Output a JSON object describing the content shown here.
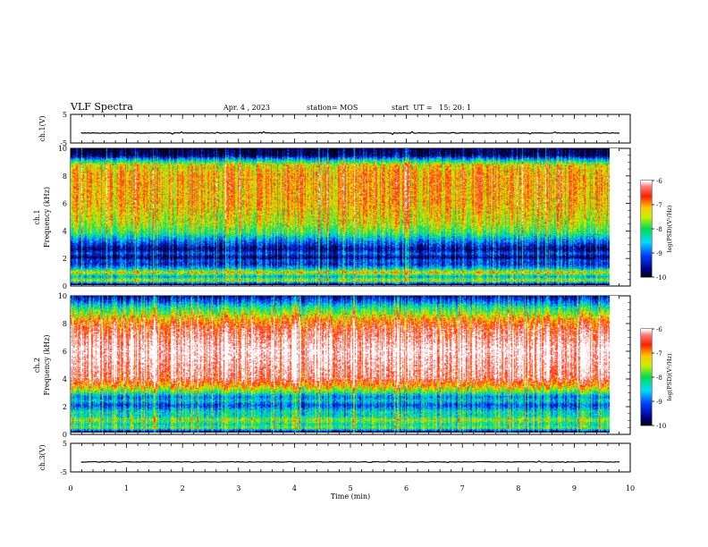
{
  "header": {
    "title": "VLF Spectra",
    "date": "Apr. 4 , 2023",
    "station": "station= MOS",
    "start": "start  UT =   15: 20: 1"
  },
  "chart_data": [
    {
      "type": "line",
      "panel": "ch1-waveform",
      "ylabel": "ch.1(V)",
      "ylim": [
        -5,
        5
      ],
      "yticks": [
        "5",
        "-5"
      ],
      "xlim": [
        0,
        10
      ],
      "series": [
        {
          "values_description_level": -1.5
        }
      ]
    },
    {
      "type": "heatmap",
      "panel": "ch1-spectrogram",
      "ylabel_line1": "ch.1",
      "ylabel_line2": "Frequency (kHz)",
      "ylim": [
        0,
        10
      ],
      "yticks": [
        "0",
        "2",
        "4",
        "6",
        "8",
        "10"
      ],
      "xlim": [
        0,
        10
      ],
      "data_end_min": 9.83,
      "colorbar": {
        "label": "log(PSD)(V²/Hz)",
        "range": [
          -10,
          -6
        ],
        "ticks": [
          "-6",
          "-7",
          "-8",
          "-9",
          "-10"
        ]
      },
      "profile": [
        [
          0,
          -10
        ],
        [
          0.3,
          -7.4
        ],
        [
          0.6,
          -8.6
        ],
        [
          0.9,
          -7.2
        ],
        [
          1.2,
          -8.6
        ],
        [
          1.5,
          -9.3
        ],
        [
          1.8,
          -9.1
        ],
        [
          2.0,
          -9.8
        ],
        [
          2.3,
          -9.1
        ],
        [
          2.6,
          -9.7
        ],
        [
          2.9,
          -9.3
        ],
        [
          3.3,
          -8.8
        ],
        [
          3.8,
          -8.0
        ],
        [
          4.5,
          -7.5
        ],
        [
          6.0,
          -7.1
        ],
        [
          8.0,
          -7.0
        ],
        [
          8.8,
          -7.3
        ],
        [
          9.2,
          -8.6
        ],
        [
          9.5,
          -9.8
        ],
        [
          10,
          -10
        ]
      ]
    },
    {
      "type": "heatmap",
      "panel": "ch2-spectrogram",
      "ylabel_line1": "ch.2",
      "ylabel_line2": "Frequency (kHz)",
      "ylim": [
        0,
        10
      ],
      "yticks": [
        "0",
        "2",
        "4",
        "6",
        "8",
        "10"
      ],
      "xlim": [
        0,
        10
      ],
      "data_end_min": 9.83,
      "colorbar": {
        "label": "log(PSD)(V²/Hz)",
        "range": [
          -10,
          -6
        ],
        "ticks": [
          "-6",
          "-7",
          "-8",
          "-9",
          "-10"
        ]
      },
      "profile": [
        [
          0,
          -10
        ],
        [
          0.3,
          -7.8
        ],
        [
          0.6,
          -8.3
        ],
        [
          0.9,
          -7.6
        ],
        [
          1.2,
          -8.4
        ],
        [
          1.5,
          -8.3
        ],
        [
          1.8,
          -8.9
        ],
        [
          2.0,
          -9.2
        ],
        [
          2.3,
          -8.5
        ],
        [
          2.6,
          -8.9
        ],
        [
          3.0,
          -7.8
        ],
        [
          3.5,
          -6.9
        ],
        [
          4.0,
          -6.3
        ],
        [
          6.0,
          -5.9
        ],
        [
          7.5,
          -6.4
        ],
        [
          8.2,
          -6.9
        ],
        [
          8.7,
          -7.6
        ],
        [
          9.2,
          -8.2
        ],
        [
          9.6,
          -9.0
        ],
        [
          10,
          -9.6
        ]
      ]
    },
    {
      "type": "line",
      "panel": "ch3-waveform",
      "ylabel": "ch.3(V)",
      "ylim": [
        -5,
        5
      ],
      "yticks": [
        "5",
        "-5"
      ],
      "xlim": [
        0,
        10
      ],
      "xlabel": "Time (min)",
      "xticks": [
        "0",
        "1",
        "2",
        "3",
        "4",
        "5",
        "6",
        "7",
        "8",
        "9",
        "10"
      ],
      "series": [
        {
          "values_description_level": -1.5
        }
      ]
    }
  ],
  "colors": {
    "frame": "#000000",
    "background": "#ffffff"
  }
}
